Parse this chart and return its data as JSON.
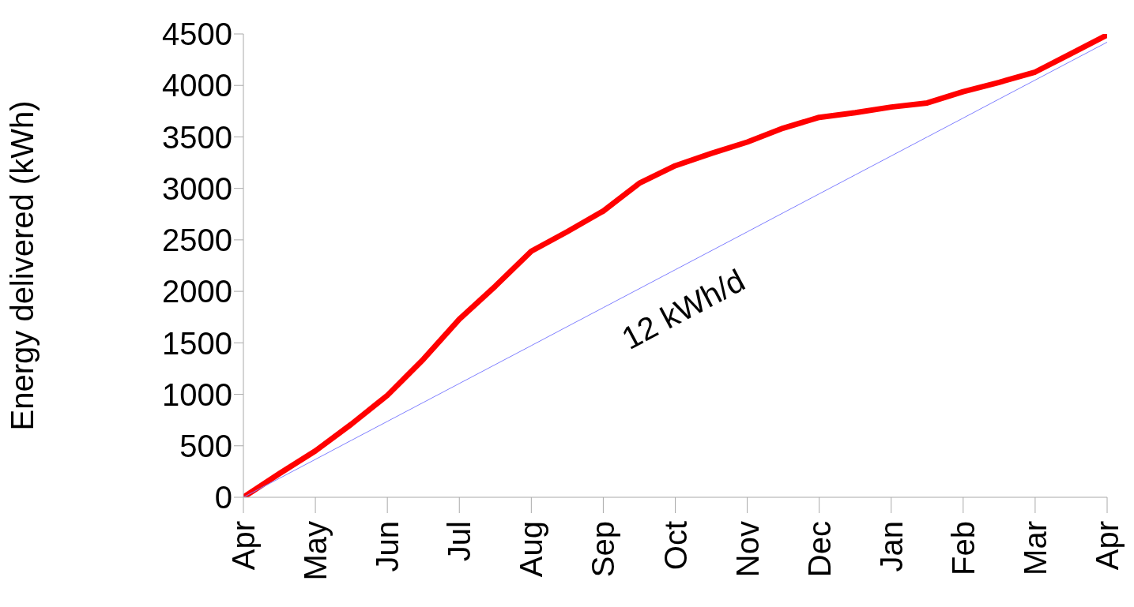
{
  "chart_data": {
    "type": "line",
    "ylabel": "Energy delivered (kWh)",
    "categories": [
      "Apr",
      null,
      "May",
      null,
      "Jun",
      null,
      "Jul",
      null,
      "Aug",
      null,
      "Sep",
      null,
      "Oct",
      null,
      "Nov",
      null,
      "Dec",
      null,
      "Jan",
      null,
      "Feb",
      null,
      "Mar",
      null,
      "Apr"
    ],
    "ylim": [
      0,
      4500
    ],
    "yticks": [
      0,
      500,
      1000,
      1500,
      2000,
      2500,
      3000,
      3500,
      4000,
      4500
    ],
    "marker": "none",
    "line_style": "solid",
    "series": [
      {
        "color": "#ff0000",
        "values": [
          0,
          230,
          450,
          710,
          990,
          1340,
          1730,
          2050,
          2390,
          2580,
          2780,
          3050,
          3220,
          3340,
          3450,
          3585,
          3690,
          3735,
          3790,
          3830,
          3940,
          4030,
          4130,
          4310,
          4490
        ]
      },
      {
        "color": "#8080ff",
        "values": [
          0,
          184,
          368,
          553,
          737,
          921,
          1105,
          1289,
          1473,
          1658,
          1842,
          2026,
          2210,
          2394,
          2578,
          2763,
          2947,
          3131,
          3315,
          3499,
          3683,
          3868,
          4052,
          4236,
          4420
        ]
      }
    ],
    "annotations": [
      "12 kWh/d"
    ]
  }
}
